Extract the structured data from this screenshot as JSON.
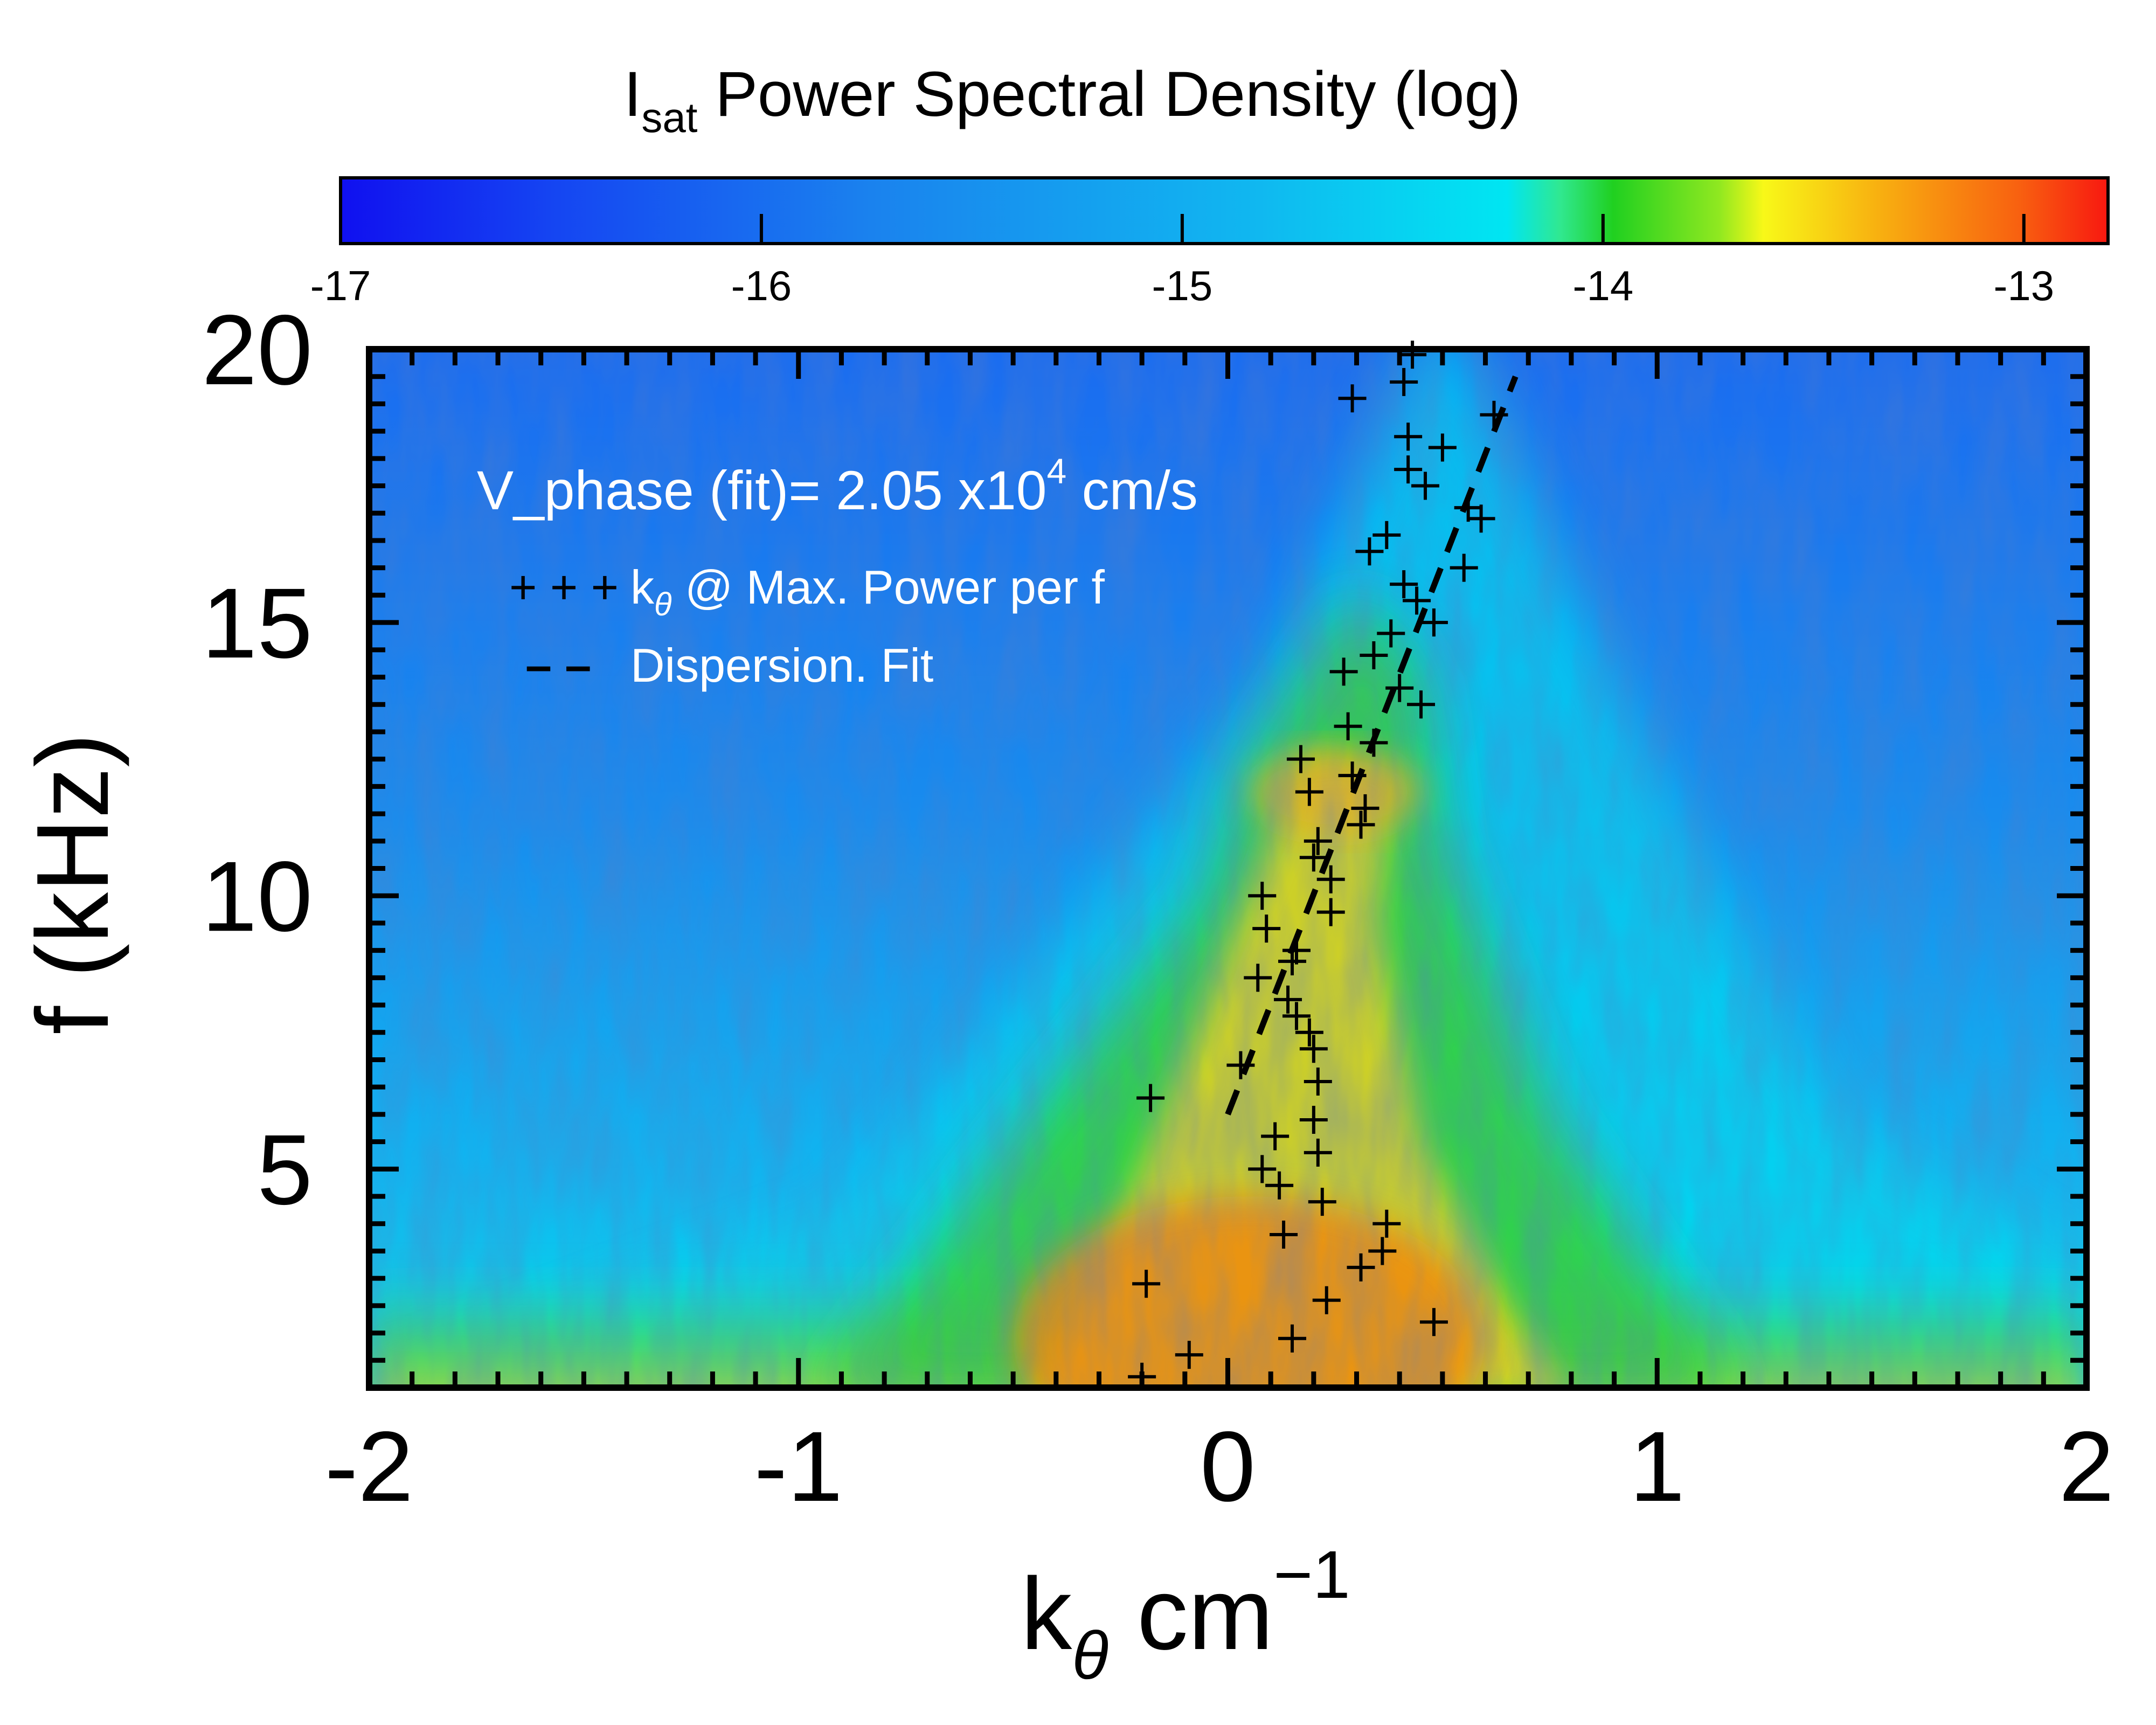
{
  "chart_data": {
    "type": "heatmap",
    "title": "",
    "colorbar": {
      "label_main": "I",
      "label_sub": "sat",
      "label_rest": " Power Spectral Density (log)",
      "range": [
        -17,
        -12.8
      ],
      "ticks": [
        -17,
        -16,
        -15,
        -14,
        -13
      ],
      "tick_labels": [
        "-17",
        "-16",
        "-15",
        "-14",
        "-13"
      ]
    },
    "xlabel": {
      "main": "k",
      "sub": "θ",
      "rest": " cm",
      "sup": "−1"
    },
    "ylabel": "f (kHz)",
    "xlim": [
      -2,
      2
    ],
    "ylim": [
      1,
      20
    ],
    "xticks": [
      -2,
      -1,
      0,
      1,
      2
    ],
    "xtick_labels": [
      "-2",
      "-1",
      "0",
      "1",
      "2"
    ],
    "yticks": [
      5,
      10,
      15,
      20
    ],
    "ytick_labels": [
      "5",
      "10",
      "15",
      "20"
    ],
    "annotation": {
      "text_main": "V_phase (fit)= 2.05 x10",
      "text_sup": "4",
      "text_rest": " cm/s"
    },
    "legend": {
      "placement": "top-left",
      "entries": [
        {
          "marker": "+ + +",
          "text_main": "k",
          "text_sub": "θ",
          "text_rest": " @ Max. Power per f"
        },
        {
          "marker": "– –",
          "text_main": "Dispersion. Fit"
        }
      ]
    },
    "colors": {
      "background_low": "#1a6cf0",
      "peak": "#f08a10",
      "markers": "#000000",
      "fit_line": "#000000",
      "annotation_text": "#ffffff"
    },
    "fit_line": {
      "x": [
        0.0,
        0.67
      ],
      "y": [
        6.0,
        19.5
      ]
    },
    "max_power_points": [
      {
        "x": 0.43,
        "y": 19.9
      },
      {
        "x": 0.29,
        "y": 19.1
      },
      {
        "x": 0.41,
        "y": 19.4
      },
      {
        "x": 0.62,
        "y": 18.8
      },
      {
        "x": 0.42,
        "y": 18.4
      },
      {
        "x": 0.5,
        "y": 18.2
      },
      {
        "x": 0.42,
        "y": 17.8
      },
      {
        "x": 0.46,
        "y": 17.5
      },
      {
        "x": 0.56,
        "y": 17.1
      },
      {
        "x": 0.59,
        "y": 16.9
      },
      {
        "x": 0.37,
        "y": 16.6
      },
      {
        "x": 0.33,
        "y": 16.3
      },
      {
        "x": 0.55,
        "y": 16.0
      },
      {
        "x": 0.41,
        "y": 15.7
      },
      {
        "x": 0.44,
        "y": 15.4
      },
      {
        "x": 0.48,
        "y": 15.0
      },
      {
        "x": 0.38,
        "y": 14.8
      },
      {
        "x": 0.34,
        "y": 14.4
      },
      {
        "x": 0.27,
        "y": 14.1
      },
      {
        "x": 0.4,
        "y": 13.8
      },
      {
        "x": 0.45,
        "y": 13.5
      },
      {
        "x": 0.28,
        "y": 13.1
      },
      {
        "x": 0.34,
        "y": 12.8
      },
      {
        "x": 0.17,
        "y": 12.5
      },
      {
        "x": 0.29,
        "y": 12.2
      },
      {
        "x": 0.19,
        "y": 11.9
      },
      {
        "x": 0.32,
        "y": 11.6
      },
      {
        "x": 0.31,
        "y": 11.3
      },
      {
        "x": 0.21,
        "y": 11.0
      },
      {
        "x": 0.2,
        "y": 10.7
      },
      {
        "x": 0.24,
        "y": 10.3
      },
      {
        "x": 0.08,
        "y": 10.0
      },
      {
        "x": 0.24,
        "y": 9.7
      },
      {
        "x": 0.09,
        "y": 9.4
      },
      {
        "x": 0.16,
        "y": 9.0
      },
      {
        "x": 0.15,
        "y": 8.8
      },
      {
        "x": 0.07,
        "y": 8.5
      },
      {
        "x": 0.14,
        "y": 8.1
      },
      {
        "x": 0.16,
        "y": 7.8
      },
      {
        "x": 0.19,
        "y": 7.5
      },
      {
        "x": 0.2,
        "y": 7.2
      },
      {
        "x": 0.03,
        "y": 6.9
      },
      {
        "x": 0.21,
        "y": 6.6
      },
      {
        "x": -0.18,
        "y": 6.3
      },
      {
        "x": 0.2,
        "y": 5.9
      },
      {
        "x": 0.11,
        "y": 5.6
      },
      {
        "x": 0.21,
        "y": 5.3
      },
      {
        "x": 0.08,
        "y": 5.0
      },
      {
        "x": 0.12,
        "y": 4.7
      },
      {
        "x": 0.22,
        "y": 4.4
      },
      {
        "x": 0.37,
        "y": 4.0
      },
      {
        "x": 0.13,
        "y": 3.8
      },
      {
        "x": 0.36,
        "y": 3.5
      },
      {
        "x": 0.31,
        "y": 3.2
      },
      {
        "x": -0.19,
        "y": 2.9
      },
      {
        "x": 0.23,
        "y": 2.6
      },
      {
        "x": 0.48,
        "y": 2.2
      },
      {
        "x": 0.15,
        "y": 1.9
      },
      {
        "x": -0.09,
        "y": 1.6
      },
      {
        "x": -0.2,
        "y": 1.2
      }
    ]
  }
}
